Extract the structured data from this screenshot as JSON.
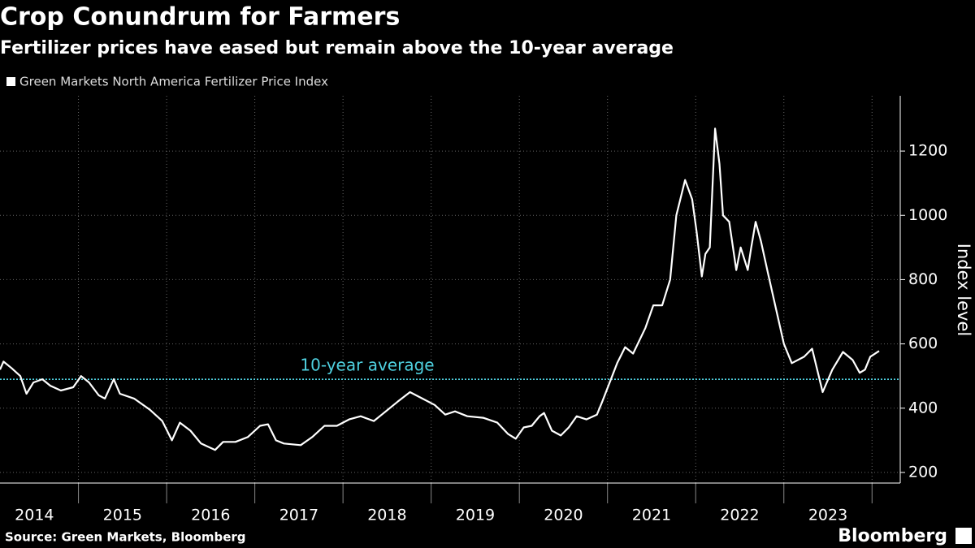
{
  "chart_data": {
    "type": "line",
    "title": "Crop Conundrum for Farmers",
    "subtitle": "Fertilizer prices have eased but remain above the 10-year average",
    "y_axis_label": "Index level",
    "source": "Source: Green Markets, Bloomberg",
    "brand": "Bloomberg",
    "x": [
      2014.11,
      2014.15,
      2014.24,
      2014.34,
      2014.41,
      2014.49,
      2014.59,
      2014.68,
      2014.8,
      2014.94,
      2015.03,
      2015.12,
      2015.23,
      2015.3,
      2015.4,
      2015.47,
      2015.63,
      2015.81,
      2015.95,
      2016.06,
      2016.15,
      2016.27,
      2016.39,
      2016.55,
      2016.64,
      2016.78,
      2016.92,
      2017.06,
      2017.15,
      2017.24,
      2017.33,
      2017.52,
      2017.65,
      2017.79,
      2017.93,
      2018.07,
      2018.2,
      2018.35,
      2018.44,
      2018.62,
      2018.76,
      2018.9,
      2019.04,
      2019.16,
      2019.27,
      2019.41,
      2019.59,
      2019.75,
      2019.87,
      2019.96,
      2020.05,
      2020.14,
      2020.23,
      2020.28,
      2020.37,
      2020.47,
      2020.56,
      2020.65,
      2020.76,
      2020.88,
      2020.94,
      2021.11,
      2021.2,
      2021.29,
      2021.43,
      2021.52,
      2021.62,
      2021.71,
      2021.78,
      2021.88,
      2021.96,
      2022.01,
      2022.07,
      2022.11,
      2022.16,
      2022.22,
      2022.27,
      2022.31,
      2022.38,
      2022.46,
      2022.51,
      2022.59,
      2022.63,
      2022.68,
      2022.74,
      2022.82,
      2022.91,
      2023.0,
      2023.09,
      2023.23,
      2023.32,
      2023.44,
      2023.55,
      2023.67,
      2023.78,
      2023.86,
      2023.92,
      2023.98,
      2024.08
    ],
    "series": [
      {
        "name": "Green Markets North America Fertilizer Price Index",
        "color": "#ffffff",
        "values": [
          520,
          545,
          525,
          500,
          445,
          480,
          490,
          470,
          455,
          465,
          500,
          480,
          440,
          430,
          490,
          445,
          430,
          395,
          360,
          300,
          355,
          330,
          290,
          270,
          295,
          295,
          310,
          345,
          350,
          300,
          290,
          285,
          310,
          345,
          345,
          365,
          375,
          360,
          380,
          420,
          450,
          430,
          410,
          380,
          390,
          375,
          370,
          355,
          320,
          305,
          340,
          345,
          375,
          385,
          330,
          315,
          340,
          375,
          365,
          380,
          420,
          540,
          590,
          570,
          650,
          720,
          720,
          800,
          1000,
          1110,
          1050,
          950,
          810,
          880,
          900,
          1270,
          1160,
          1000,
          980,
          830,
          900,
          830,
          900,
          980,
          920,
          820,
          710,
          600,
          540,
          560,
          585,
          450,
          520,
          575,
          550,
          510,
          520,
          560,
          578
        ]
      }
    ],
    "reference": {
      "label": "10-year average",
      "value": 490,
      "color": "#4fd1e0"
    },
    "xlim": [
      2014.11,
      2024.32
    ],
    "xticks": [
      {
        "value": 2014.5,
        "label": "2014"
      },
      {
        "value": 2015.5,
        "label": "2015"
      },
      {
        "value": 2016.5,
        "label": "2016"
      },
      {
        "value": 2017.5,
        "label": "2017"
      },
      {
        "value": 2018.5,
        "label": "2018"
      },
      {
        "value": 2019.5,
        "label": "2019"
      },
      {
        "value": 2020.5,
        "label": "2020"
      },
      {
        "value": 2021.5,
        "label": "2021"
      },
      {
        "value": 2022.5,
        "label": "2022"
      },
      {
        "value": 2023.5,
        "label": "2023"
      }
    ],
    "ylim": [
      167,
      1372
    ],
    "yticks": [
      200,
      400,
      600,
      800,
      1000,
      1200
    ],
    "grid": true
  }
}
